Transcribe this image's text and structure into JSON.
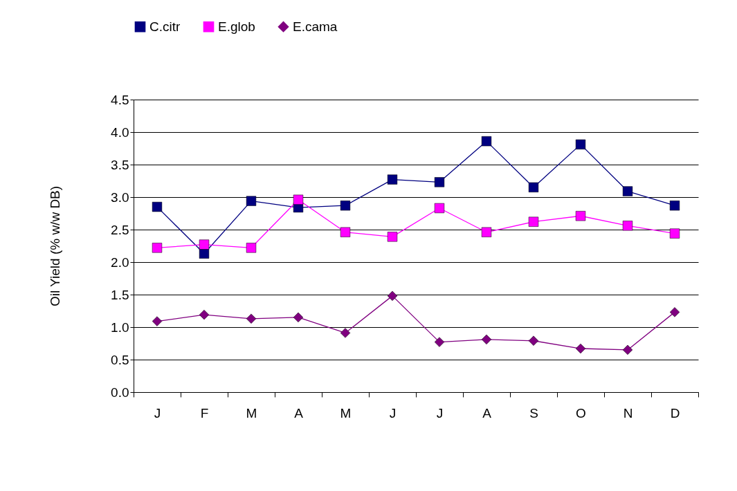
{
  "chart_data": {
    "type": "line",
    "ylabel": "Oil Yield (% w/w DB)",
    "categories": [
      "J",
      "F",
      "M",
      "A",
      "M",
      "J",
      "J",
      "A",
      "S",
      "O",
      "N",
      "D"
    ],
    "series": [
      {
        "name": "C.citr",
        "color": "#000080",
        "marker": "square",
        "values": [
          2.85,
          2.13,
          2.94,
          2.84,
          2.87,
          3.27,
          3.23,
          3.86,
          3.15,
          3.81,
          3.09,
          2.87
        ]
      },
      {
        "name": "E.glob",
        "color": "#ff00ff",
        "marker": "square",
        "values": [
          2.22,
          2.27,
          2.22,
          2.96,
          2.46,
          2.39,
          2.83,
          2.46,
          2.62,
          2.71,
          2.56,
          2.44
        ]
      },
      {
        "name": "E.cama",
        "color": "#800080",
        "marker": "diamond",
        "values": [
          1.09,
          1.19,
          1.13,
          1.15,
          0.91,
          1.48,
          0.77,
          0.81,
          0.79,
          0.67,
          0.65,
          1.23
        ]
      }
    ],
    "ylim": [
      0,
      4.5
    ],
    "yticks": [
      {
        "value": 0,
        "label": "0.0"
      },
      0.5,
      {
        "value": 1,
        "label": "1.0"
      },
      1.5,
      {
        "value": 2,
        "label": "2.0"
      },
      2.5,
      {
        "value": 3,
        "label": "3.0"
      },
      3.5,
      {
        "value": 4,
        "label": "4.0"
      },
      4.5
    ],
    "grid": "y",
    "legend": "top"
  }
}
